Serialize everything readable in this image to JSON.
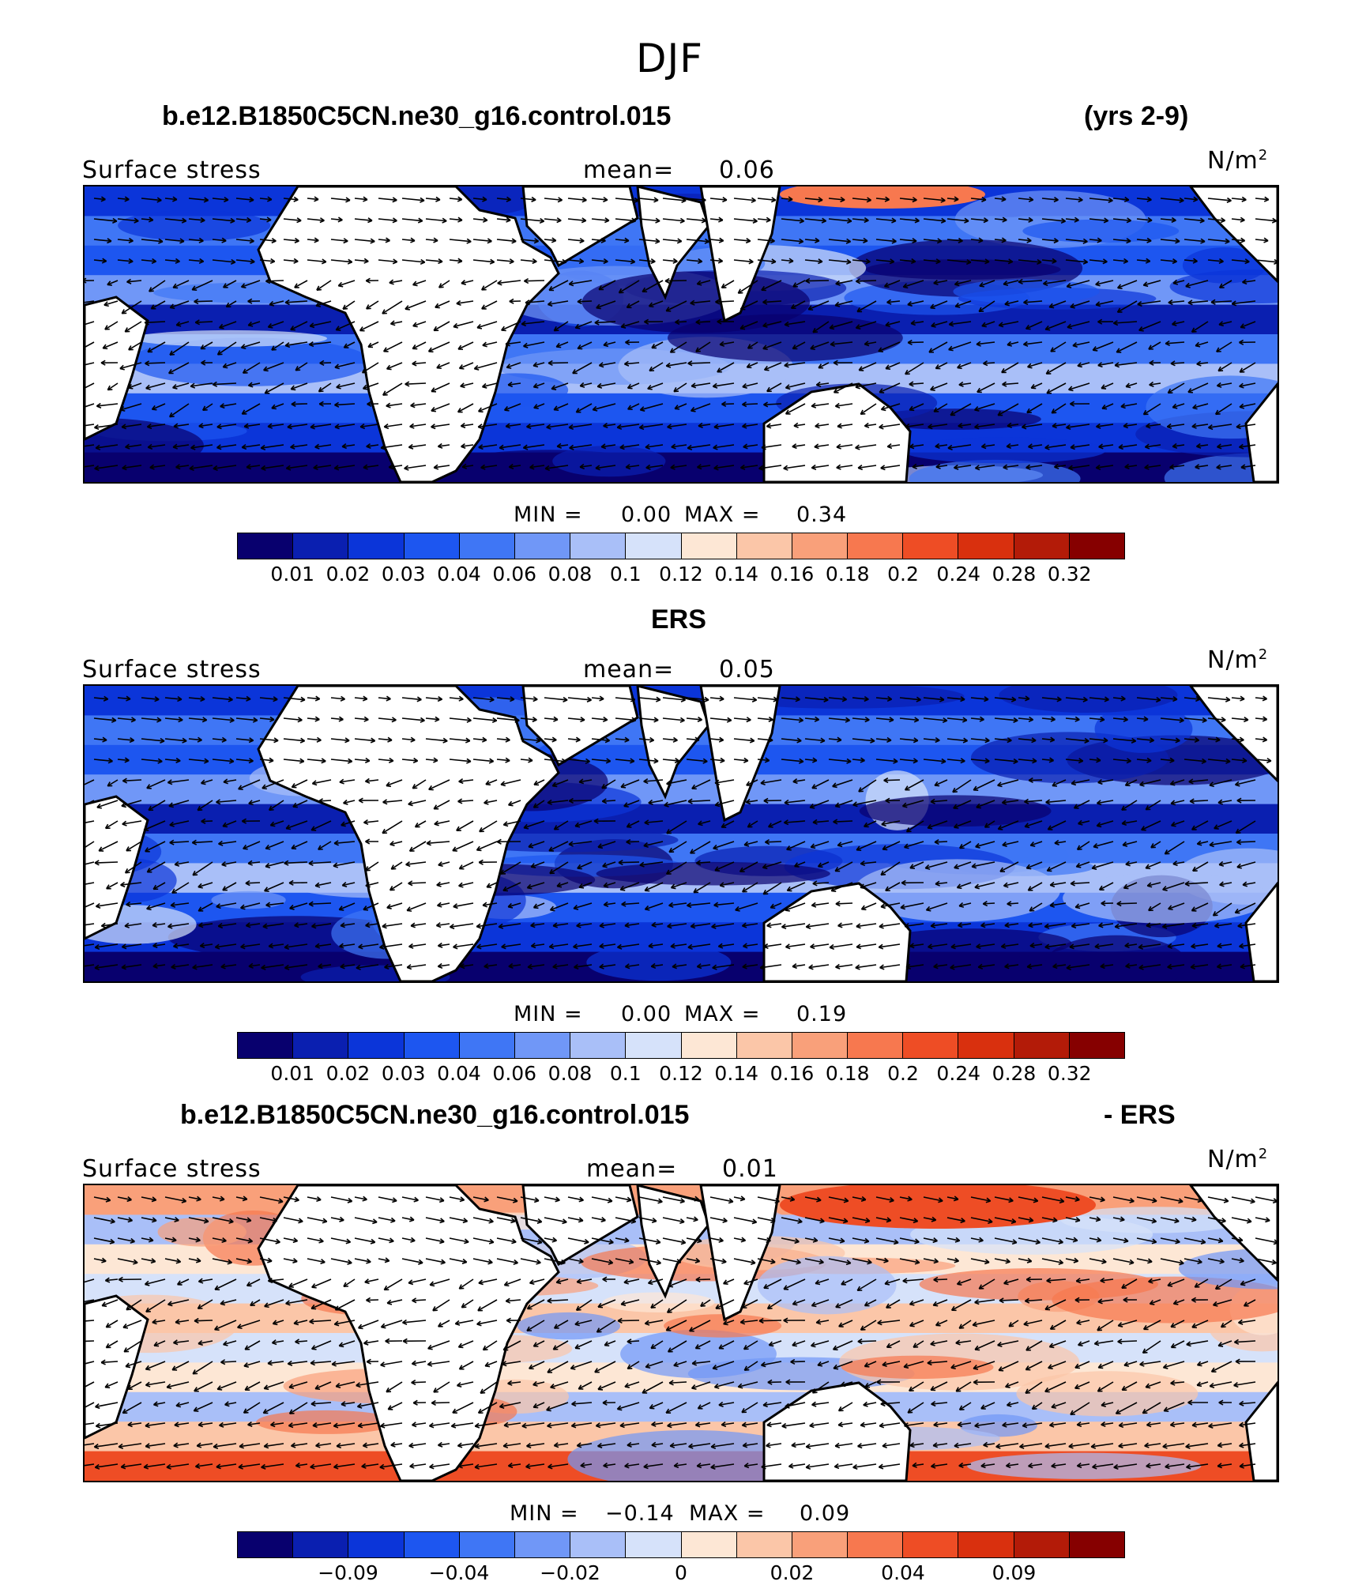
{
  "figure_title": "DJF",
  "colors": {
    "scale": [
      "#08006e",
      "#0a1fb0",
      "#0b35d9",
      "#1d56f0",
      "#3f76f5",
      "#7097f7",
      "#a9bff8",
      "#d6e2fa",
      "#fde7d5",
      "#fbc6a8",
      "#f9a07a",
      "#f7784f",
      "#ee4d25",
      "#d9300e",
      "#b31b08",
      "#860000"
    ],
    "land": "#ffffff",
    "coast": "#000000"
  },
  "panels": [
    {
      "id": "model",
      "title_left": "b.e12.B1850C5CN.ne30_g16.control.015",
      "title_right": "(yrs 2-9)",
      "variable": "Surface stress",
      "mean_label": "mean=",
      "mean_value": "0.06",
      "units": "N/m",
      "units_sup": "2",
      "min_label": "MIN =",
      "min_value": "0.00",
      "max_label": "MAX =",
      "max_value": "0.34",
      "colorbar_labels": [
        "0.01",
        "0.02",
        "0.03",
        "0.04",
        "0.06",
        "0.08",
        "0.1",
        "0.12",
        "0.14",
        "0.16",
        "0.18",
        "0.2",
        "0.24",
        "0.28",
        "0.32"
      ]
    },
    {
      "id": "obs",
      "title_center": "ERS",
      "variable": "Surface stress",
      "mean_label": "mean=",
      "mean_value": "0.05",
      "units": "N/m",
      "units_sup": "2",
      "min_label": "MIN =",
      "min_value": "0.00",
      "max_label": "MAX =",
      "max_value": "0.19",
      "colorbar_labels": [
        "0.01",
        "0.02",
        "0.03",
        "0.04",
        "0.06",
        "0.08",
        "0.1",
        "0.12",
        "0.14",
        "0.16",
        "0.18",
        "0.2",
        "0.24",
        "0.28",
        "0.32"
      ]
    },
    {
      "id": "diff",
      "title_left": "b.e12.B1850C5CN.ne30_g16.control.015",
      "title_right": "- ERS",
      "variable": "Surface stress",
      "mean_label": "mean=",
      "mean_value": "0.01",
      "units": "N/m",
      "units_sup": "2",
      "min_label": "MIN =",
      "min_value": "−0.14",
      "max_label": "MAX =",
      "max_value": "0.09",
      "colorbar_labels": [
        "−0.09",
        "−0.04",
        "−0.02",
        "0",
        "0.02",
        "0.04",
        "0.09"
      ]
    }
  ]
}
